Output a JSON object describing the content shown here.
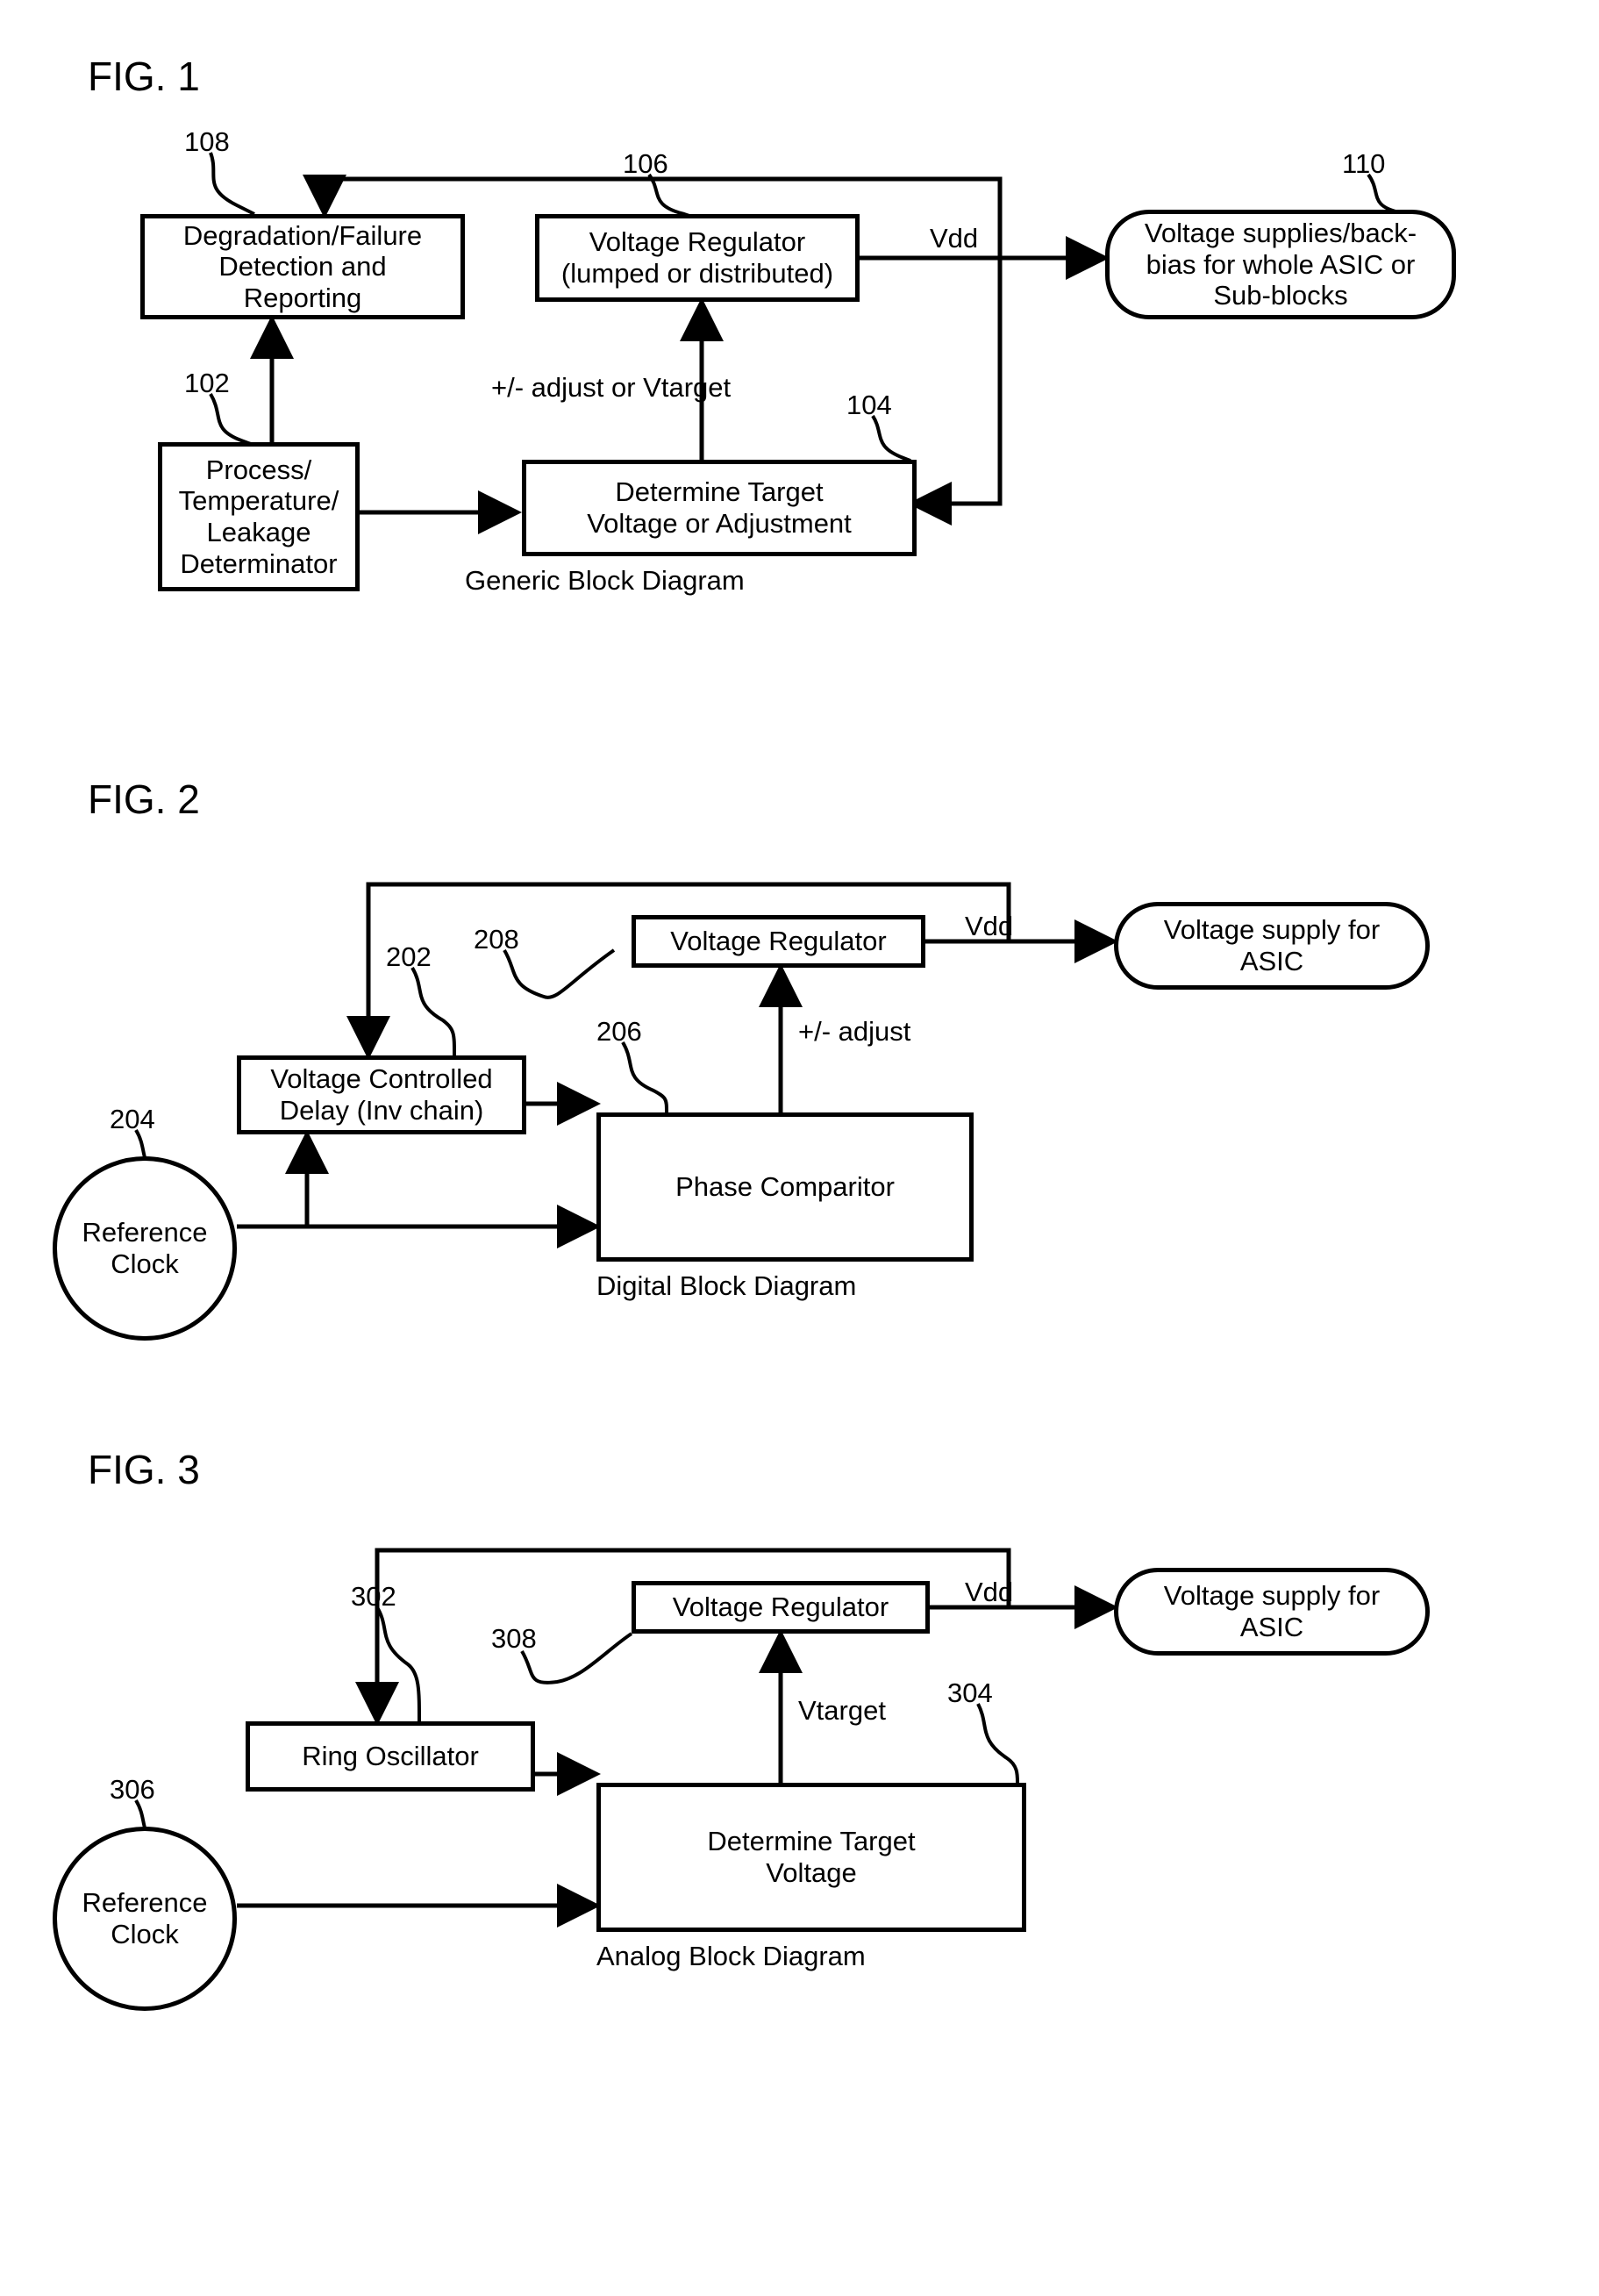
{
  "fig1": {
    "title": "FIG. 1",
    "caption": "Generic Block Diagram",
    "refs": {
      "r108": "108",
      "r106": "106",
      "r110": "110",
      "r102": "102",
      "r104": "104"
    },
    "blocks": {
      "degradation": "Degradation/Failure\nDetection and\nReporting",
      "vreg": "Voltage Regulator\n(lumped or distributed)",
      "output": "Voltage supplies/back-\nbias for whole ASIC or\nSub-blocks",
      "process": "Process/\nTemperature/\nLeakage\nDeterminator",
      "determine": "Determine Target\nVoltage or Adjustment"
    },
    "labels": {
      "vdd": "Vdd",
      "adjust": "+/- adjust or Vtarget"
    }
  },
  "fig2": {
    "title": "FIG. 2",
    "caption": "Digital Block Diagram",
    "refs": {
      "r208": "208",
      "r202": "202",
      "r206": "206",
      "r204": "204"
    },
    "blocks": {
      "vreg": "Voltage Regulator",
      "output": "Voltage supply for\nASIC",
      "vcd": "Voltage Controlled\nDelay (Inv chain)",
      "phase": "Phase Comparitor",
      "clock": "Reference\nClock"
    },
    "labels": {
      "vdd": "Vdd",
      "adjust": "+/- adjust"
    }
  },
  "fig3": {
    "title": "FIG. 3",
    "caption": "Analog Block Diagram",
    "refs": {
      "r302": "302",
      "r308": "308",
      "r304": "304",
      "r306": "306"
    },
    "blocks": {
      "vreg": "Voltage Regulator",
      "output": "Voltage supply for\nASIC",
      "ring": "Ring Oscillator",
      "determine": "Determine Target\nVoltage",
      "clock": "Reference\nClock"
    },
    "labels": {
      "vdd": "Vdd",
      "vtarget": "Vtarget"
    }
  },
  "style": {
    "stroke_color": "#000000",
    "stroke_width": 5,
    "background": "#ffffff",
    "font_family": "Arial",
    "title_fontsize": 46,
    "block_fontsize": 31,
    "label_fontsize": 31
  }
}
